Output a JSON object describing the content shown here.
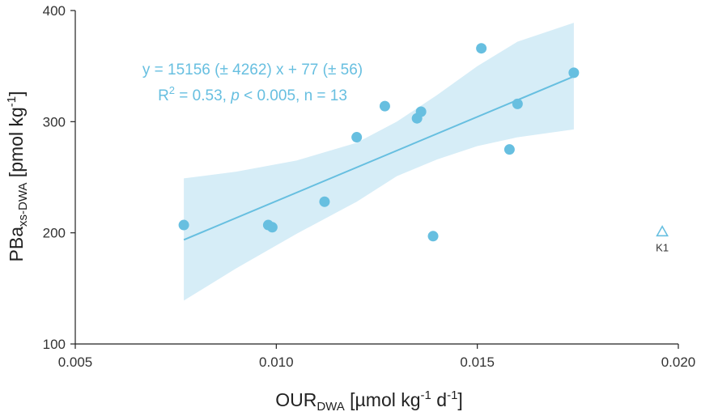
{
  "chart_data": {
    "type": "scatter",
    "xlim": [
      0.005,
      0.02
    ],
    "ylim": [
      100,
      400
    ],
    "x_ticks": [
      "0.005",
      "0.010",
      "0.015",
      "0.020"
    ],
    "y_ticks": [
      "100",
      "200",
      "300",
      "400"
    ],
    "xlabel": {
      "main": "OUR",
      "sub": "DWA",
      "rest": " [µmol kg",
      "sup1": "-1",
      "mid": " d",
      "sup2": "-1",
      "end": "]"
    },
    "ylabel": {
      "main": "PBa",
      "sub": "xs-DWA",
      "rest": " [pmol kg",
      "sup": "-1",
      "end": "]"
    },
    "points": [
      {
        "x": 0.0077,
        "y": 207
      },
      {
        "x": 0.0098,
        "y": 207
      },
      {
        "x": 0.0099,
        "y": 205
      },
      {
        "x": 0.0112,
        "y": 228
      },
      {
        "x": 0.012,
        "y": 286
      },
      {
        "x": 0.0127,
        "y": 314
      },
      {
        "x": 0.0135,
        "y": 303
      },
      {
        "x": 0.0136,
        "y": 309
      },
      {
        "x": 0.0139,
        "y": 197
      },
      {
        "x": 0.0151,
        "y": 366
      },
      {
        "x": 0.0158,
        "y": 275
      },
      {
        "x": 0.016,
        "y": 316
      },
      {
        "x": 0.0174,
        "y": 344
      }
    ],
    "outlier": {
      "x": 0.0196,
      "y": 201,
      "label": "K1"
    },
    "fit": {
      "x": [
        0.0077,
        0.0174
      ],
      "slope": 15156,
      "intercept": 77
    },
    "confidence_band": {
      "x": [
        0.0077,
        0.009,
        0.0105,
        0.012,
        0.013,
        0.014,
        0.015,
        0.016,
        0.0174
      ],
      "upper": [
        249,
        255,
        265,
        281,
        300,
        324,
        350,
        372,
        389
      ],
      "lower": [
        139,
        168,
        199,
        228,
        251,
        266,
        278,
        286,
        293
      ]
    },
    "equation": {
      "line1": "y = 15156 (± 4262) x + 77 (± 56)",
      "r": "R",
      "sup": "2",
      "stats_a": " = 0.53, ",
      "p": "p",
      "stats_b": " < 0.005, n = 13"
    },
    "colors": {
      "point": "#67bfe0",
      "line": "#67bfe0",
      "band": "#d6edf7",
      "text": "#67bfe0"
    }
  }
}
